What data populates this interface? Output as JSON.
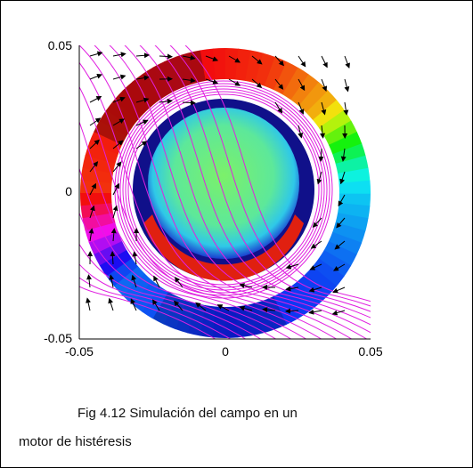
{
  "figure": {
    "y_ticks": [
      "0.05",
      "0",
      "-0.05"
    ],
    "x_ticks": [
      "-0.05",
      "0",
      "0.05"
    ],
    "caption_line_1": "Fig 4.12 Simulación del campo en un",
    "caption_line_2": "motor de histéresis"
  }
}
